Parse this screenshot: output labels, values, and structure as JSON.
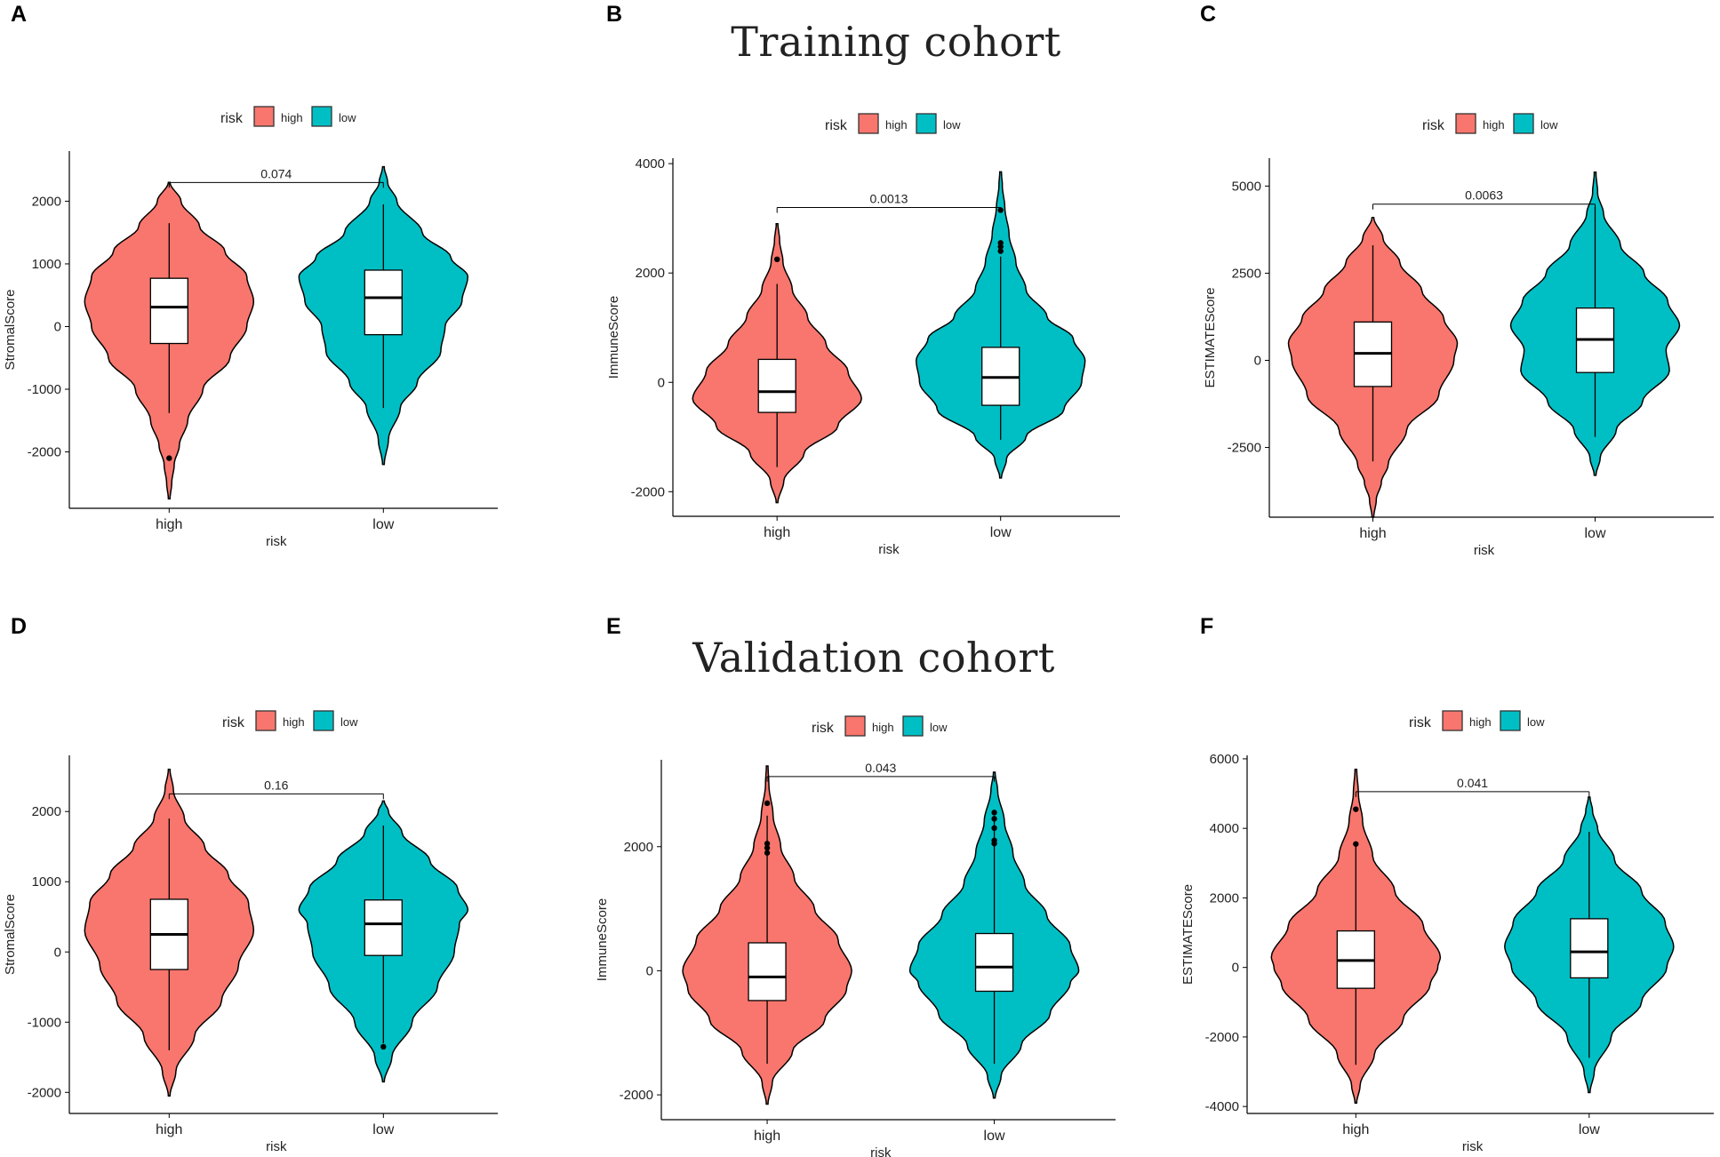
{
  "cohort_titles": {
    "training": "Training cohort",
    "validation": "Validation cohort"
  },
  "colors": {
    "high": "#F8766D",
    "low": "#00BFC4",
    "axis": "#000000"
  },
  "chart_data": [
    {
      "panel": "A",
      "type": "violin",
      "title": "",
      "legend": {
        "title": "risk",
        "entries": [
          "high",
          "low"
        ],
        "position": "top"
      },
      "xlabel": "risk",
      "ylabel": "StromalScore",
      "categories": [
        "high",
        "low"
      ],
      "ylim": [
        -2900,
        2800
      ],
      "yticks": [
        -2000,
        -1000,
        0,
        1000,
        2000
      ],
      "pvalue": "0.074",
      "groups": [
        {
          "name": "high",
          "min": -2750,
          "max": 2300,
          "whisker_low": -1380,
          "whisker_high": 1650,
          "q1": -270,
          "median": 310,
          "q3": 770,
          "outliers": [
            -2100
          ],
          "density": [
            [
              -2750,
              0.01
            ],
            [
              -2500,
              0.03
            ],
            [
              -2200,
              0.06
            ],
            [
              -1900,
              0.12
            ],
            [
              -1500,
              0.22
            ],
            [
              -1000,
              0.4
            ],
            [
              -500,
              0.72
            ],
            [
              0,
              0.92
            ],
            [
              400,
              1
            ],
            [
              800,
              0.92
            ],
            [
              1200,
              0.66
            ],
            [
              1600,
              0.36
            ],
            [
              2000,
              0.14
            ],
            [
              2300,
              0.01
            ]
          ]
        },
        {
          "name": "low",
          "min": -2200,
          "max": 2550,
          "whisker_low": -1300,
          "whisker_high": 1950,
          "q1": -130,
          "median": 460,
          "q3": 900,
          "outliers": [],
          "density": [
            [
              -2200,
              0.01
            ],
            [
              -1800,
              0.06
            ],
            [
              -1300,
              0.2
            ],
            [
              -900,
              0.4
            ],
            [
              -400,
              0.68
            ],
            [
              0,
              0.73
            ],
            [
              400,
              0.93
            ],
            [
              800,
              1
            ],
            [
              1100,
              0.8
            ],
            [
              1500,
              0.46
            ],
            [
              2000,
              0.16
            ],
            [
              2300,
              0.05
            ],
            [
              2550,
              0.01
            ]
          ]
        }
      ]
    },
    {
      "panel": "B",
      "type": "violin",
      "title": "",
      "legend": {
        "title": "risk",
        "entries": [
          "high",
          "low"
        ],
        "position": "top"
      },
      "xlabel": "risk",
      "ylabel": "ImmuneScore",
      "categories": [
        "high",
        "low"
      ],
      "ylim": [
        -2450,
        4100
      ],
      "yticks": [
        -2000,
        0,
        2000,
        4000
      ],
      "pvalue": "0.0013",
      "groups": [
        {
          "name": "high",
          "min": -2200,
          "max": 2900,
          "whisker_low": -1550,
          "whisker_high": 1800,
          "q1": -550,
          "median": -170,
          "q3": 420,
          "outliers": [
            2250
          ],
          "density": [
            [
              -2200,
              0.01
            ],
            [
              -1800,
              0.08
            ],
            [
              -1300,
              0.32
            ],
            [
              -800,
              0.72
            ],
            [
              -300,
              1
            ],
            [
              200,
              0.84
            ],
            [
              700,
              0.58
            ],
            [
              1200,
              0.36
            ],
            [
              1700,
              0.18
            ],
            [
              2200,
              0.07
            ],
            [
              2600,
              0.03
            ],
            [
              2900,
              0.01
            ]
          ]
        },
        {
          "name": "low",
          "min": -1750,
          "max": 3850,
          "whisker_low": -1050,
          "whisker_high": 2300,
          "q1": -420,
          "median": 90,
          "q3": 640,
          "outliers": [
            2400,
            2480,
            2550,
            3150
          ],
          "density": [
            [
              -1750,
              0.01
            ],
            [
              -1400,
              0.07
            ],
            [
              -1000,
              0.3
            ],
            [
              -500,
              0.75
            ],
            [
              0,
              0.96
            ],
            [
              400,
              1
            ],
            [
              800,
              0.86
            ],
            [
              1200,
              0.55
            ],
            [
              1700,
              0.3
            ],
            [
              2200,
              0.18
            ],
            [
              2700,
              0.1
            ],
            [
              3200,
              0.05
            ],
            [
              3600,
              0.02
            ],
            [
              3850,
              0.01
            ]
          ]
        }
      ]
    },
    {
      "panel": "C",
      "type": "violin",
      "title": "",
      "legend": {
        "title": "risk",
        "entries": [
          "high",
          "low"
        ],
        "position": "top"
      },
      "xlabel": "risk",
      "ylabel": "ESTIMATEScore",
      "categories": [
        "high",
        "low"
      ],
      "ylim": [
        -4500,
        5800
      ],
      "yticks": [
        -2500,
        0,
        2500,
        5000
      ],
      "pvalue": "0.0063",
      "groups": [
        {
          "name": "high",
          "min": -4500,
          "max": 4100,
          "whisker_low": -2900,
          "whisker_high": 3300,
          "q1": -750,
          "median": 200,
          "q3": 1100,
          "outliers": [],
          "density": [
            [
              -4500,
              0.01
            ],
            [
              -4000,
              0.04
            ],
            [
              -3500,
              0.1
            ],
            [
              -3000,
              0.18
            ],
            [
              -2000,
              0.4
            ],
            [
              -1000,
              0.78
            ],
            [
              0,
              0.96
            ],
            [
              500,
              1
            ],
            [
              1200,
              0.84
            ],
            [
              2000,
              0.58
            ],
            [
              2800,
              0.32
            ],
            [
              3500,
              0.12
            ],
            [
              4100,
              0.01
            ]
          ]
        },
        {
          "name": "low",
          "min": -3300,
          "max": 5400,
          "whisker_low": -2200,
          "whisker_high": 4400,
          "q1": -350,
          "median": 600,
          "q3": 1500,
          "outliers": [],
          "density": [
            [
              -3300,
              0.01
            ],
            [
              -2800,
              0.06
            ],
            [
              -2000,
              0.25
            ],
            [
              -1200,
              0.56
            ],
            [
              -300,
              0.88
            ],
            [
              300,
              0.84
            ],
            [
              1000,
              1
            ],
            [
              1700,
              0.86
            ],
            [
              2500,
              0.58
            ],
            [
              3300,
              0.3
            ],
            [
              4200,
              0.1
            ],
            [
              4800,
              0.03
            ],
            [
              5400,
              0.01
            ]
          ]
        }
      ]
    },
    {
      "panel": "D",
      "type": "violin",
      "title": "",
      "legend": {
        "title": "risk",
        "entries": [
          "high",
          "low"
        ],
        "position": "top"
      },
      "xlabel": "risk",
      "ylabel": "StromalScore",
      "categories": [
        "high",
        "low"
      ],
      "ylim": [
        -2300,
        2800
      ],
      "yticks": [
        -2000,
        -1000,
        0,
        1000,
        2000
      ],
      "pvalue": "0.16",
      "groups": [
        {
          "name": "high",
          "min": -2050,
          "max": 2600,
          "whisker_low": -1400,
          "whisker_high": 1900,
          "q1": -250,
          "median": 250,
          "q3": 750,
          "outliers": [],
          "density": [
            [
              -2050,
              0.01
            ],
            [
              -1700,
              0.08
            ],
            [
              -1200,
              0.3
            ],
            [
              -700,
              0.62
            ],
            [
              -200,
              0.82
            ],
            [
              300,
              1
            ],
            [
              700,
              0.94
            ],
            [
              1100,
              0.7
            ],
            [
              1500,
              0.42
            ],
            [
              1900,
              0.18
            ],
            [
              2300,
              0.05
            ],
            [
              2600,
              0.01
            ]
          ]
        },
        {
          "name": "low",
          "min": -1850,
          "max": 2150,
          "whisker_low": -1300,
          "whisker_high": 1800,
          "q1": -50,
          "median": 400,
          "q3": 740,
          "outliers": [
            -1350
          ],
          "density": [
            [
              -1850,
              0.01
            ],
            [
              -1500,
              0.1
            ],
            [
              -1000,
              0.34
            ],
            [
              -500,
              0.64
            ],
            [
              0,
              0.84
            ],
            [
              400,
              0.9
            ],
            [
              600,
              1
            ],
            [
              900,
              0.88
            ],
            [
              1300,
              0.55
            ],
            [
              1700,
              0.22
            ],
            [
              2000,
              0.06
            ],
            [
              2150,
              0.01
            ]
          ]
        }
      ]
    },
    {
      "panel": "E",
      "type": "violin",
      "title": "",
      "legend": {
        "title": "risk",
        "entries": [
          "high",
          "low"
        ],
        "position": "top"
      },
      "xlabel": "risk",
      "ylabel": "ImmuneScore",
      "categories": [
        "high",
        "low"
      ],
      "ylim": [
        -2400,
        3400
      ],
      "yticks": [
        -2000,
        0,
        2000
      ],
      "pvalue": "0.043",
      "groups": [
        {
          "name": "high",
          "min": -2150,
          "max": 3300,
          "whisker_low": -1500,
          "whisker_high": 2500,
          "q1": -480,
          "median": -100,
          "q3": 450,
          "outliers": [
            1900,
            1980,
            2050,
            2700
          ],
          "density": [
            [
              -2150,
              0.01
            ],
            [
              -1800,
              0.06
            ],
            [
              -1300,
              0.3
            ],
            [
              -800,
              0.68
            ],
            [
              -300,
              0.94
            ],
            [
              0,
              1
            ],
            [
              500,
              0.84
            ],
            [
              1000,
              0.56
            ],
            [
              1500,
              0.32
            ],
            [
              2000,
              0.16
            ],
            [
              2500,
              0.07
            ],
            [
              3000,
              0.02
            ],
            [
              3300,
              0.01
            ]
          ]
        },
        {
          "name": "low",
          "min": -2050,
          "max": 3200,
          "whisker_low": -1500,
          "whisker_high": 2500,
          "q1": -330,
          "median": 60,
          "q3": 600,
          "outliers": [
            2050,
            2100,
            2300,
            2450,
            2550
          ],
          "density": [
            [
              -2050,
              0.01
            ],
            [
              -1700,
              0.08
            ],
            [
              -1200,
              0.32
            ],
            [
              -700,
              0.66
            ],
            [
              -200,
              0.9
            ],
            [
              0,
              1
            ],
            [
              400,
              0.9
            ],
            [
              900,
              0.62
            ],
            [
              1400,
              0.36
            ],
            [
              1900,
              0.22
            ],
            [
              2400,
              0.12
            ],
            [
              2900,
              0.04
            ],
            [
              3200,
              0.01
            ]
          ]
        }
      ]
    },
    {
      "panel": "F",
      "type": "violin",
      "title": "",
      "legend": {
        "title": "risk",
        "entries": [
          "high",
          "low"
        ],
        "position": "top"
      },
      "xlabel": "risk",
      "ylabel": "ESTIMATEScore",
      "categories": [
        "high",
        "low"
      ],
      "ylim": [
        -4200,
        6100
      ],
      "yticks": [
        -4000,
        -2000,
        0,
        2000,
        4000,
        6000
      ],
      "pvalue": "0.041",
      "groups": [
        {
          "name": "high",
          "min": -3900,
          "max": 5700,
          "whisker_low": -2800,
          "whisker_high": 3500,
          "q1": -600,
          "median": 200,
          "q3": 1050,
          "outliers": [
            3550,
            4550
          ],
          "density": [
            [
              -3900,
              0.01
            ],
            [
              -3400,
              0.05
            ],
            [
              -2500,
              0.22
            ],
            [
              -1500,
              0.56
            ],
            [
              -500,
              0.88
            ],
            [
              0,
              0.97
            ],
            [
              300,
              1
            ],
            [
              1200,
              0.8
            ],
            [
              2200,
              0.46
            ],
            [
              3200,
              0.2
            ],
            [
              4200,
              0.08
            ],
            [
              5000,
              0.03
            ],
            [
              5700,
              0.01
            ]
          ]
        },
        {
          "name": "low",
          "min": -3600,
          "max": 4900,
          "whisker_low": -2600,
          "whisker_high": 3900,
          "q1": -300,
          "median": 450,
          "q3": 1400,
          "outliers": [],
          "density": [
            [
              -3600,
              0.01
            ],
            [
              -3000,
              0.06
            ],
            [
              -2000,
              0.26
            ],
            [
              -1000,
              0.62
            ],
            [
              0,
              0.92
            ],
            [
              600,
              1
            ],
            [
              1300,
              0.9
            ],
            [
              2200,
              0.62
            ],
            [
              3100,
              0.3
            ],
            [
              4000,
              0.1
            ],
            [
              4500,
              0.04
            ],
            [
              4900,
              0.01
            ]
          ]
        }
      ]
    }
  ]
}
